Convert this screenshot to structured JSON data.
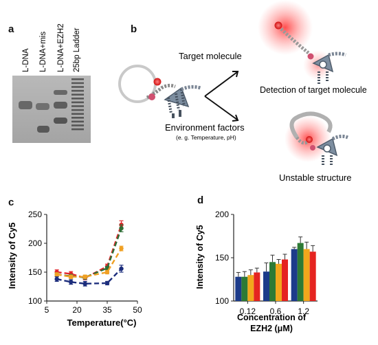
{
  "panels": {
    "a": {
      "letter": "a",
      "lane_labels": [
        "L-DNA",
        "L-DNA+mis",
        "L-DNA+EZH2",
        "25bp Ladder"
      ]
    },
    "b": {
      "letter": "b",
      "target_label": "Target molecule",
      "detection_label": "Detection of target molecule",
      "environment_label": "Environment factors",
      "environment_sub": "(e. g. Temperature, pH)",
      "unstable_label": "Unstable structure"
    }
  },
  "chart_data": [
    {
      "panel": "c",
      "type": "line",
      "xlabel": "Temperature(°C)",
      "ylabel": "Intensity of Cy5",
      "xlim": [
        5,
        50
      ],
      "ylim": [
        100,
        250
      ],
      "xticks": [
        5,
        20,
        35,
        50
      ],
      "yticks": [
        100,
        150,
        200,
        250
      ],
      "x": [
        10,
        17,
        24,
        35,
        42
      ],
      "series": [
        {
          "color": "#e2262b",
          "values": [
            150,
            147,
            140,
            160,
            232
          ],
          "errors": [
            4,
            4,
            3,
            4,
            7
          ]
        },
        {
          "color": "#2f6e36",
          "values": [
            146,
            143,
            141,
            157,
            226
          ],
          "errors": [
            3,
            3,
            3,
            3,
            6
          ]
        },
        {
          "color": "#f0a023",
          "values": [
            146,
            142,
            142,
            150,
            191
          ],
          "errors": [
            3,
            3,
            3,
            3,
            4
          ]
        },
        {
          "color": "#1c2d7c",
          "values": [
            138,
            133,
            130,
            131,
            156
          ],
          "errors": [
            4,
            4,
            4,
            3,
            6
          ]
        }
      ]
    },
    {
      "panel": "d",
      "type": "bar",
      "xlabel": "Concentration of EZH2 (μM)",
      "ylabel": "Intensity of Cy5",
      "categories": [
        "0.12",
        "0.6",
        "1.2"
      ],
      "ylim": [
        100,
        200
      ],
      "yticks": [
        100,
        150,
        200
      ],
      "series": [
        {
          "color": "#1c3b8a",
          "values": [
            128,
            134,
            160
          ],
          "errors": [
            5,
            10,
            2
          ]
        },
        {
          "color": "#2d7a35",
          "values": [
            128,
            145,
            167
          ],
          "errors": [
            6,
            8,
            7
          ]
        },
        {
          "color": "#f2a71c",
          "values": [
            130,
            143,
            160
          ],
          "errors": [
            6,
            5,
            8
          ]
        },
        {
          "color": "#e52420",
          "values": [
            133,
            148,
            157
          ],
          "errors": [
            5,
            6,
            7
          ]
        }
      ]
    }
  ]
}
